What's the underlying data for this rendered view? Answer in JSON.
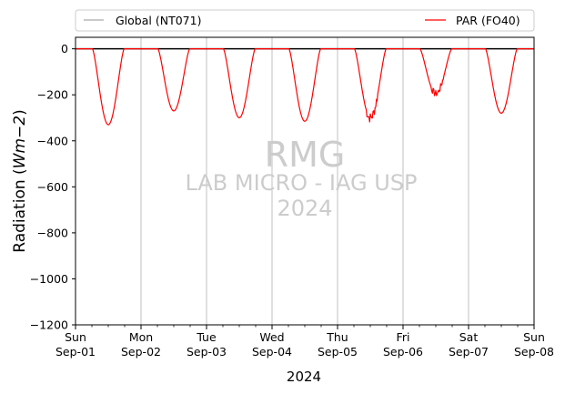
{
  "chart_data": {
    "type": "line",
    "ylabel_prefix": "Radiation (",
    "ylabel_unit": "Wm−2",
    "ylabel_suffix": ")",
    "xlabel": "2024",
    "ylim": [
      -1200,
      50
    ],
    "yticks": [
      0,
      -200,
      -400,
      -600,
      -800,
      -1000,
      -1200
    ],
    "ytick_labels": [
      "0",
      "−200",
      "−400",
      "−600",
      "−800",
      "−1000",
      "−1200"
    ],
    "xlim_days": [
      "2024-09-01",
      "2024-09-08"
    ],
    "xticks": [
      {
        "day": "Sun",
        "date": "Sep-01"
      },
      {
        "day": "Mon",
        "date": "Sep-02"
      },
      {
        "day": "Tue",
        "date": "Sep-03"
      },
      {
        "day": "Wed",
        "date": "Sep-04"
      },
      {
        "day": "Thu",
        "date": "Sep-05"
      },
      {
        "day": "Fri",
        "date": "Sep-06"
      },
      {
        "day": "Sat",
        "date": "Sep-07"
      },
      {
        "day": "Sun",
        "date": "Sep-08"
      }
    ],
    "grid": "x-major",
    "legend_placement": "top (above axes)",
    "series": [
      {
        "name": "Global (NT071)",
        "color": "#aaaaaa",
        "values": []
      },
      {
        "name": "PAR (FO40)",
        "color": "#ff0000",
        "daily_minimum": [
          {
            "date": "2024-09-01",
            "value": -330
          },
          {
            "date": "2024-09-02",
            "value": -270
          },
          {
            "date": "2024-09-03",
            "value": -300
          },
          {
            "date": "2024-09-04",
            "value": -315
          },
          {
            "date": "2024-09-05",
            "value": -300
          },
          {
            "date": "2024-09-06",
            "value": -195
          },
          {
            "date": "2024-09-07",
            "value": -280
          }
        ]
      }
    ],
    "reference_line": {
      "y": 0,
      "color": "#000000"
    },
    "watermark": [
      "RMG",
      "LAB MICRO - IAG USP",
      "2024"
    ]
  }
}
